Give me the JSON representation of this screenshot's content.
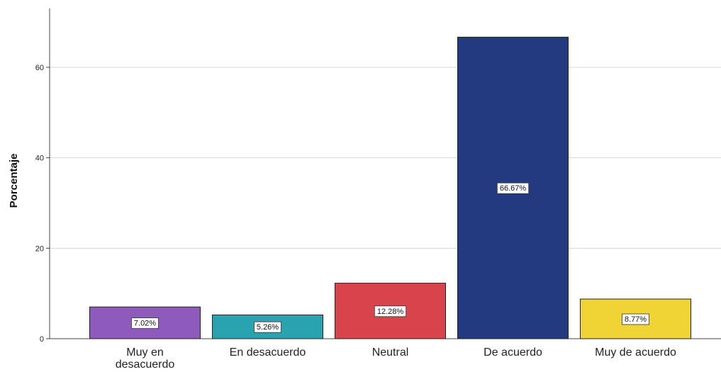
{
  "chart_data": {
    "type": "bar",
    "title": "",
    "xlabel": "",
    "ylabel": "Porcentaje",
    "ylim": [
      0,
      73
    ],
    "yticks": [
      0,
      20,
      40,
      60
    ],
    "grid": true,
    "categories": [
      [
        "Muy en",
        "desacuerdo"
      ],
      [
        "En desacuerdo"
      ],
      [
        "Neutral"
      ],
      [
        "De acuerdo"
      ],
      [
        "Muy de acuerdo"
      ]
    ],
    "values": [
      7.02,
      5.26,
      12.28,
      66.67,
      8.77
    ],
    "data_labels": [
      "7.02%",
      "5.26%",
      "12.28%",
      "66.67%",
      "8.77%"
    ],
    "colors": [
      "#8e5bbd",
      "#2aa3b0",
      "#d8434c",
      "#233a80",
      "#f0d436"
    ]
  }
}
